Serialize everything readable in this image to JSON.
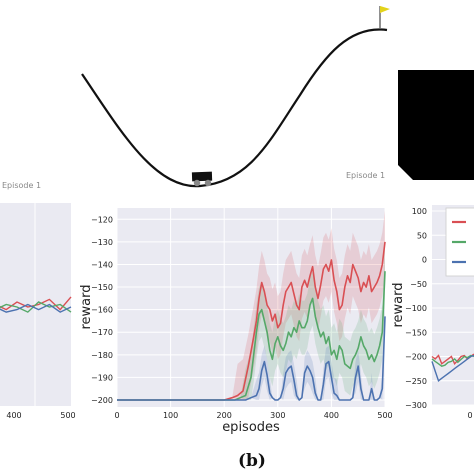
{
  "episode_labels": [
    "Episode 1",
    "Episode 1"
  ],
  "caption": "(b)",
  "chart_data": [
    {
      "type": "line",
      "panel": "left-cropped",
      "x_tick_labels": [
        "400",
        "500"
      ],
      "xlim": [
        350,
        500
      ],
      "series": [
        {
          "color": "#d94f53",
          "x": [
            350,
            365,
            380,
            395,
            410,
            425,
            440,
            455,
            470,
            485,
            500
          ],
          "y": [
            -200,
            -199,
            -201,
            -200,
            -202,
            -199,
            -201,
            -200,
            -198,
            -202,
            -197
          ]
        },
        {
          "color": "#55a868",
          "x": [
            350,
            365,
            380,
            395,
            410,
            425,
            440,
            455,
            470,
            485,
            500
          ],
          "y": [
            -201,
            -200,
            -199,
            -202,
            -200,
            -201,
            -203,
            -199,
            -201,
            -200,
            -203
          ]
        },
        {
          "color": "#4c72b0",
          "x": [
            350,
            365,
            380,
            395,
            410,
            425,
            440,
            455,
            470,
            485,
            500
          ],
          "y": [
            -202,
            -201,
            -203,
            -201,
            -203,
            -202,
            -200,
            -202,
            -200,
            -203,
            -201
          ]
        }
      ]
    },
    {
      "type": "line",
      "panel": "center",
      "xlabel": "episodes",
      "ylabel": "reward",
      "xlim": [
        0,
        500
      ],
      "ylim": [
        -200,
        -115
      ],
      "x_ticks": [
        0,
        100,
        200,
        300,
        400,
        500
      ],
      "y_ticks": [
        -120,
        -130,
        -140,
        -150,
        -160,
        -170,
        -180,
        -190,
        -200
      ],
      "grid": true,
      "series": [
        {
          "color": "#d94f53",
          "x": [
            0,
            200,
            215,
            225,
            235,
            245,
            255,
            260,
            265,
            270,
            275,
            280,
            285,
            290,
            295,
            300,
            305,
            310,
            315,
            320,
            325,
            330,
            335,
            340,
            345,
            350,
            355,
            360,
            365,
            370,
            375,
            380,
            385,
            390,
            395,
            400,
            405,
            410,
            415,
            420,
            425,
            430,
            435,
            440,
            445,
            450,
            455,
            460,
            465,
            470,
            475,
            480,
            485,
            490,
            495,
            500
          ],
          "y": [
            -200,
            -200,
            -199,
            -198,
            -196,
            -185,
            -172,
            -165,
            -155,
            -148,
            -152,
            -158,
            -160,
            -165,
            -162,
            -168,
            -166,
            -158,
            -152,
            -150,
            -148,
            -153,
            -158,
            -160,
            -150,
            -147,
            -150,
            -145,
            -141,
            -150,
            -155,
            -149,
            -142,
            -140,
            -143,
            -138,
            -147,
            -152,
            -160,
            -158,
            -150,
            -145,
            -148,
            -140,
            -143,
            -146,
            -152,
            -148,
            -150,
            -145,
            -152,
            -150,
            -148,
            -145,
            -140,
            -130
          ]
        },
        {
          "color": "#55a868",
          "x": [
            0,
            220,
            230,
            240,
            250,
            255,
            260,
            265,
            270,
            275,
            280,
            285,
            290,
            295,
            300,
            305,
            310,
            315,
            320,
            325,
            330,
            335,
            340,
            345,
            350,
            355,
            360,
            365,
            370,
            375,
            380,
            385,
            390,
            395,
            400,
            405,
            410,
            415,
            420,
            425,
            430,
            435,
            440,
            445,
            450,
            455,
            460,
            465,
            470,
            475,
            480,
            485,
            490,
            495,
            500
          ],
          "y": [
            -200,
            -200,
            -199,
            -198,
            -190,
            -180,
            -170,
            -162,
            -160,
            -165,
            -170,
            -178,
            -182,
            -175,
            -172,
            -176,
            -178,
            -175,
            -170,
            -172,
            -168,
            -170,
            -165,
            -168,
            -168,
            -165,
            -158,
            -155,
            -163,
            -168,
            -172,
            -170,
            -175,
            -172,
            -180,
            -178,
            -182,
            -176,
            -178,
            -184,
            -185,
            -186,
            -182,
            -180,
            -177,
            -172,
            -176,
            -178,
            -182,
            -180,
            -183,
            -180,
            -176,
            -170,
            -143
          ]
        },
        {
          "color": "#4c72b0",
          "x": [
            0,
            240,
            250,
            260,
            265,
            270,
            275,
            280,
            285,
            290,
            295,
            300,
            305,
            310,
            315,
            320,
            325,
            330,
            335,
            340,
            345,
            350,
            355,
            360,
            365,
            370,
            375,
            380,
            385,
            390,
            395,
            400,
            405,
            410,
            415,
            420,
            425,
            430,
            435,
            440,
            445,
            450,
            455,
            460,
            465,
            470,
            475,
            480,
            485,
            490,
            495,
            500
          ],
          "y": [
            -200,
            -200,
            -199,
            -198,
            -195,
            -187,
            -183,
            -189,
            -197,
            -199,
            -200,
            -200,
            -199,
            -195,
            -188,
            -186,
            -185,
            -191,
            -198,
            -200,
            -199,
            -188,
            -185,
            -187,
            -190,
            -197,
            -200,
            -200,
            -193,
            -184,
            -183,
            -190,
            -197,
            -198,
            -200,
            -200,
            -200,
            -200,
            -200,
            -199,
            -190,
            -185,
            -195,
            -200,
            -200,
            -200,
            -195,
            -200,
            -200,
            -199,
            -195,
            -163
          ]
        }
      ]
    },
    {
      "type": "line",
      "panel": "right-cropped",
      "ylabel": "reward",
      "ylim": [
        -300,
        100
      ],
      "y_ticks": [
        100,
        50,
        0,
        -50,
        -100,
        -150,
        -200,
        -250,
        -300
      ],
      "x_tick_labels": [
        "0"
      ],
      "grid": true,
      "legend_colors": [
        "#d94f53",
        "#55a868",
        "#4c72b0"
      ],
      "series": [
        {
          "color": "#d94f53",
          "x": [
            0,
            5,
            10,
            15,
            20,
            25,
            30,
            35,
            40,
            45,
            50,
            55,
            60,
            65
          ],
          "y": [
            -200,
            -205,
            -198,
            -215,
            -210,
            -205,
            -200,
            -215,
            -208,
            -200,
            -198,
            -205,
            -200,
            -195
          ]
        },
        {
          "color": "#55a868",
          "x": [
            0,
            5,
            10,
            15,
            20,
            25,
            30,
            35,
            40,
            45,
            50,
            55,
            60,
            65
          ],
          "y": [
            -205,
            -210,
            -215,
            -220,
            -218,
            -212,
            -210,
            -205,
            -212,
            -206,
            -200,
            -202,
            -198,
            -200
          ]
        },
        {
          "color": "#4c72b0",
          "x": [
            0,
            5,
            10,
            15,
            20,
            25,
            30,
            35,
            40,
            45,
            50,
            55,
            60,
            65
          ],
          "y": [
            -210,
            -230,
            -250,
            -245,
            -240,
            -235,
            -230,
            -225,
            -220,
            -215,
            -210,
            -205,
            -200,
            -198
          ]
        }
      ]
    }
  ]
}
